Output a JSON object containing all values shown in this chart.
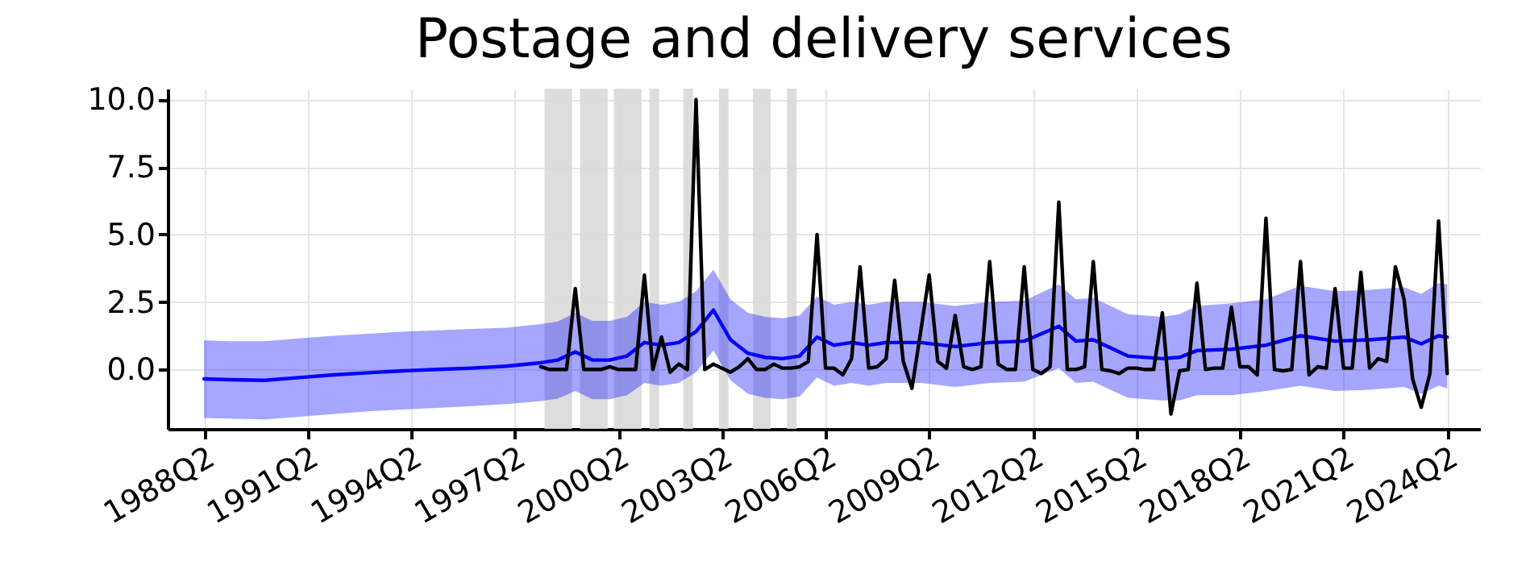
{
  "chart_data": {
    "type": "line",
    "title": "Postage and delivery services",
    "xlim": [
      "1987-03-14",
      "2025-03-14"
    ],
    "ylim": [
      -2.2,
      10.4
    ],
    "xticks": [
      {
        "value": "1988-04",
        "label": "1988Q2"
      },
      {
        "value": "1991-04",
        "label": "1991Q2"
      },
      {
        "value": "1994-04",
        "label": "1994Q2"
      },
      {
        "value": "1997-04",
        "label": "1997Q2"
      },
      {
        "value": "2000-04",
        "label": "2000Q2"
      },
      {
        "value": "2003-04",
        "label": "2003Q2"
      },
      {
        "value": "2006-04",
        "label": "2006Q2"
      },
      {
        "value": "2009-04",
        "label": "2009Q2"
      },
      {
        "value": "2012-04",
        "label": "2012Q2"
      },
      {
        "value": "2015-04",
        "label": "2015Q2"
      },
      {
        "value": "2018-04",
        "label": "2018Q2"
      },
      {
        "value": "2021-04",
        "label": "2021Q2"
      },
      {
        "value": "2024-04",
        "label": "2024Q2"
      }
    ],
    "yticks": [
      {
        "value": 0,
        "label": "0.0"
      },
      {
        "value": 2.5,
        "label": "2.5"
      },
      {
        "value": 5,
        "label": "5.0"
      },
      {
        "value": 7.5,
        "label": "7.5"
      },
      {
        "value": 10,
        "label": "10.0"
      }
    ],
    "grid": true,
    "bands": [
      {
        "axis": "x",
        "from": "1998-02-10",
        "to": "1998-11-28",
        "color": "#d9d9d9"
      },
      {
        "axis": "x",
        "from": "1999-02-21",
        "to": "1999-12-09",
        "color": "#d9d9d9"
      },
      {
        "axis": "x",
        "from": "2000-02-14",
        "to": "2000-12-02",
        "color": "#d9d9d9"
      },
      {
        "axis": "x",
        "from": "2001-02-24",
        "to": "2001-06-06",
        "color": "#d9d9d9"
      },
      {
        "axis": "x",
        "from": "2002-02-17",
        "to": "2002-05-30",
        "color": "#d9d9d9"
      },
      {
        "axis": "x",
        "from": "2003-02-28",
        "to": "2003-06-10",
        "color": "#d9d9d9"
      },
      {
        "axis": "x",
        "from": "2004-02-24",
        "to": "2004-08-29",
        "color": "#d9d9d9"
      },
      {
        "axis": "x",
        "from": "2005-02-17",
        "to": "2005-05-30",
        "color": "#d9d9d9"
      }
    ],
    "series": [
      {
        "color": "#0000ff",
        "x": [
          "1988-04",
          "1989-01",
          "1990-01",
          "1991-01",
          "1992-01",
          "1993-01",
          "1994-01",
          "1995-01",
          "1996-01",
          "1997-01",
          "1998-01",
          "1998-07",
          "1999-01",
          "1999-07",
          "2000-01",
          "2000-07",
          "2001-01",
          "2001-07",
          "2002-01",
          "2002-07",
          "2003-01",
          "2003-07",
          "2004-01",
          "2004-07",
          "2005-01",
          "2005-07",
          "2006-01",
          "2006-07",
          "2007-01",
          "2007-07",
          "2008-01",
          "2009-01",
          "2010-01",
          "2011-01",
          "2012-01",
          "2013-01",
          "2013-07",
          "2014-01",
          "2015-01",
          "2016-01",
          "2016-07",
          "2017-01",
          "2018-01",
          "2019-01",
          "2020-01",
          "2021-01",
          "2022-01",
          "2023-01",
          "2023-07",
          "2024-01",
          "2024-04"
        ],
        "values": [
          -0.35,
          -0.38,
          -0.4,
          -0.3,
          -0.2,
          -0.12,
          -0.05,
          0.0,
          0.05,
          0.12,
          0.25,
          0.35,
          0.65,
          0.35,
          0.35,
          0.5,
          1.0,
          0.9,
          1.0,
          1.4,
          2.2,
          1.1,
          0.6,
          0.45,
          0.4,
          0.5,
          1.2,
          0.9,
          1.0,
          0.9,
          1.0,
          1.0,
          0.85,
          1.0,
          1.05,
          1.6,
          1.05,
          1.1,
          0.5,
          0.4,
          0.45,
          0.7,
          0.75,
          0.9,
          1.25,
          1.05,
          1.1,
          1.2,
          0.95,
          1.25,
          1.2
        ],
        "lower": [
          -1.8,
          -1.82,
          -1.85,
          -1.75,
          -1.65,
          -1.55,
          -1.48,
          -1.42,
          -1.36,
          -1.28,
          -1.17,
          -1.08,
          -0.8,
          -1.1,
          -1.1,
          -0.95,
          -0.5,
          -0.6,
          -0.5,
          -0.1,
          0.7,
          -0.4,
          -0.9,
          -1.05,
          -1.1,
          -1.0,
          -0.3,
          -0.6,
          -0.5,
          -0.6,
          -0.5,
          -0.5,
          -0.65,
          -0.5,
          -0.45,
          0.05,
          -0.5,
          -0.45,
          -1.05,
          -1.15,
          -1.15,
          -0.95,
          -0.95,
          -0.8,
          -0.6,
          -0.8,
          -0.75,
          -0.65,
          -0.9,
          -0.6,
          -0.7
        ],
        "upper": [
          1.08,
          1.05,
          1.05,
          1.15,
          1.25,
          1.32,
          1.4,
          1.45,
          1.5,
          1.55,
          1.68,
          1.78,
          2.1,
          1.8,
          1.8,
          1.95,
          2.5,
          2.4,
          2.5,
          2.9,
          3.7,
          2.6,
          2.1,
          1.95,
          1.9,
          2.0,
          2.7,
          2.4,
          2.5,
          2.4,
          2.5,
          2.5,
          2.35,
          2.5,
          2.55,
          3.15,
          2.6,
          2.65,
          2.05,
          1.95,
          2.05,
          2.35,
          2.45,
          2.6,
          3.1,
          2.9,
          2.95,
          3.05,
          2.8,
          3.2,
          3.15
        ]
      },
      {
        "color": "#000000",
        "x": [
          "1998-01",
          "1998-04",
          "1998-07",
          "1998-10",
          "1999-01",
          "1999-04",
          "1999-07",
          "1999-10",
          "2000-01",
          "2000-04",
          "2000-07",
          "2000-10",
          "2001-01",
          "2001-04",
          "2001-07",
          "2001-10",
          "2002-01",
          "2002-04",
          "2002-07",
          "2002-10",
          "2003-01",
          "2003-04",
          "2003-07",
          "2003-10",
          "2004-01",
          "2004-04",
          "2004-07",
          "2004-10",
          "2005-01",
          "2005-04",
          "2005-07",
          "2005-10",
          "2006-01",
          "2006-04",
          "2006-07",
          "2006-10",
          "2007-01",
          "2007-04",
          "2007-07",
          "2007-10",
          "2008-01",
          "2008-04",
          "2008-07",
          "2008-10",
          "2009-01",
          "2009-04",
          "2009-07",
          "2009-10",
          "2010-01",
          "2010-04",
          "2010-07",
          "2010-10",
          "2011-01",
          "2011-04",
          "2011-07",
          "2011-10",
          "2012-01",
          "2012-04",
          "2012-07",
          "2012-10",
          "2013-01",
          "2013-04",
          "2013-07",
          "2013-10",
          "2014-01",
          "2014-04",
          "2014-07",
          "2014-10",
          "2015-01",
          "2015-04",
          "2015-07",
          "2015-10",
          "2016-01",
          "2016-04",
          "2016-07",
          "2016-10",
          "2017-01",
          "2017-04",
          "2017-07",
          "2017-10",
          "2018-01",
          "2018-04",
          "2018-07",
          "2018-10",
          "2019-01",
          "2019-04",
          "2019-07",
          "2019-10",
          "2020-01",
          "2020-04",
          "2020-07",
          "2020-10",
          "2021-01",
          "2021-04",
          "2021-07",
          "2021-10",
          "2022-01",
          "2022-04",
          "2022-07",
          "2022-10",
          "2023-01",
          "2023-04",
          "2023-07",
          "2023-10",
          "2024-01",
          "2024-04"
        ],
        "values": [
          0.1,
          0.0,
          0.0,
          0.0,
          3.0,
          0.0,
          0.0,
          0.0,
          0.1,
          0.0,
          0.0,
          0.0,
          3.5,
          0.0,
          1.2,
          -0.1,
          0.2,
          0.0,
          10.0,
          0.0,
          0.2,
          0.05,
          -0.1,
          0.1,
          0.4,
          0.0,
          0.0,
          0.2,
          0.05,
          0.05,
          0.1,
          0.3,
          5.0,
          0.05,
          0.05,
          -0.2,
          0.4,
          3.8,
          0.05,
          0.1,
          0.4,
          3.3,
          0.3,
          -0.7,
          1.4,
          3.5,
          0.3,
          0.05,
          2.0,
          0.1,
          0.0,
          0.1,
          4.0,
          0.2,
          0.0,
          0.0,
          3.8,
          0.0,
          -0.15,
          0.1,
          6.2,
          0.0,
          0.0,
          0.1,
          4.0,
          0.0,
          -0.05,
          -0.15,
          0.05,
          0.05,
          0.0,
          0.0,
          2.1,
          -1.65,
          -0.05,
          0.0,
          3.2,
          0.0,
          0.05,
          0.05,
          2.3,
          0.1,
          0.1,
          -0.2,
          5.6,
          0.0,
          -0.05,
          0.0,
          4.0,
          -0.2,
          0.1,
          0.05,
          3.0,
          0.05,
          0.05,
          3.6,
          0.05,
          0.4,
          0.3,
          3.8,
          2.6,
          -0.35,
          -1.4,
          -0.15,
          5.5,
          -0.15
        ]
      }
    ]
  }
}
